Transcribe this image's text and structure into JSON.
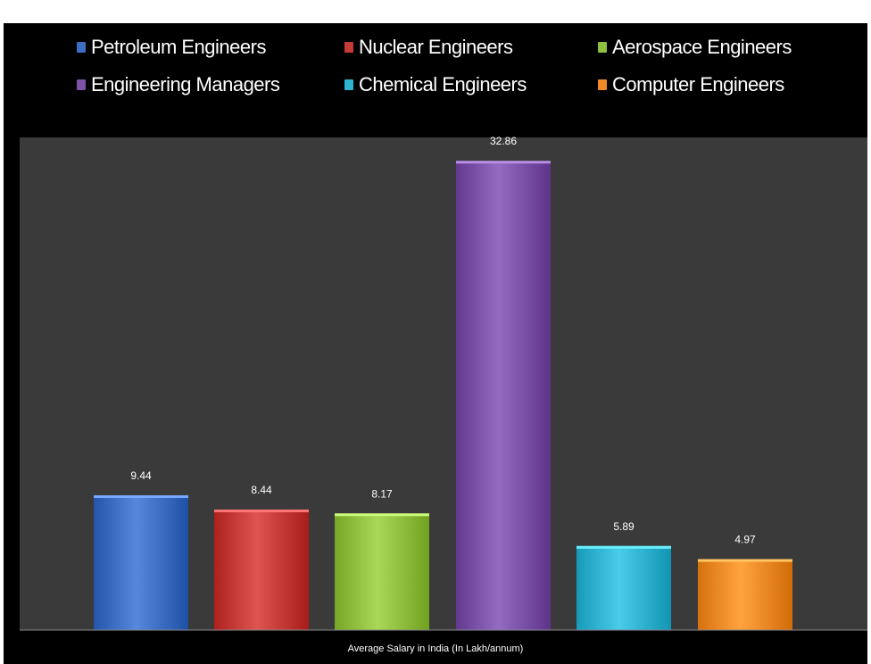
{
  "chart_data": {
    "type": "bar",
    "title": "",
    "xlabel": "Average Salary in India (In Lakh/annum)",
    "ylabel": "",
    "ylim": [
      0,
      34.5
    ],
    "grid": false,
    "legend_position": "top",
    "categories": [
      "Average Salary in India (In Lakh/annum)"
    ],
    "series": [
      {
        "name": "Petroleum Engineers",
        "values": [
          9.44
        ],
        "value_label": "9.44",
        "color": "#3c6fc4"
      },
      {
        "name": "Nuclear Engineers",
        "values": [
          8.44
        ],
        "value_label": "8.44",
        "color": "#c63a38"
      },
      {
        "name": "Aerospace Engineers",
        "values": [
          8.17
        ],
        "value_label": "8.17",
        "color": "#8fbf3e"
      },
      {
        "name": "Engineering Managers",
        "values": [
          32.86
        ],
        "value_label": "32.86",
        "color": "#7b52a8"
      },
      {
        "name": "Chemical Engineers",
        "values": [
          5.89
        ],
        "value_label": "5.89",
        "color": "#2fb3d0"
      },
      {
        "name": "Computer Engineers",
        "values": [
          4.97
        ],
        "value_label": "4.97",
        "color": "#ef8a26"
      }
    ]
  }
}
